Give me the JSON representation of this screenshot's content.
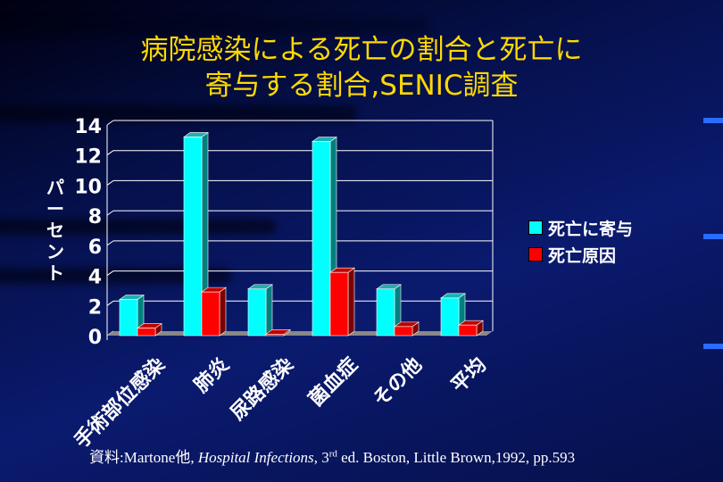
{
  "title_line1": "病院感染による死亡の割合と死亡に",
  "title_line2": "寄与する割合,SENIC調査",
  "source": {
    "prefix": "資料:Martone他, ",
    "book": "Hospital Infections",
    "rest1": ", 3",
    "sup": "rd",
    "rest2": " ed. Boston, Little Brown,1992, pp.593"
  },
  "chart_data": {
    "type": "bar",
    "title": "病院感染による死亡の割合と死亡に寄与する割合,SENIC調査",
    "ylabel": "パーセント",
    "xlabel": "",
    "ylim": [
      0,
      14
    ],
    "yticks": [
      "0",
      "2",
      "4",
      "6",
      "8",
      "10",
      "12",
      "14"
    ],
    "grid": true,
    "legend_position": "right",
    "categories": [
      "手術部位感染",
      "肺炎",
      "尿路感染",
      "菌血症",
      "その他",
      "平均"
    ],
    "series": [
      {
        "name": "死亡に寄与",
        "color": "#00ffff",
        "values": [
          2.4,
          13.2,
          3.1,
          12.9,
          3.1,
          2.5
        ]
      },
      {
        "name": "死亡原因",
        "color": "#ff0000",
        "values": [
          0.5,
          2.9,
          0.1,
          4.2,
          0.6,
          0.7
        ]
      }
    ]
  }
}
